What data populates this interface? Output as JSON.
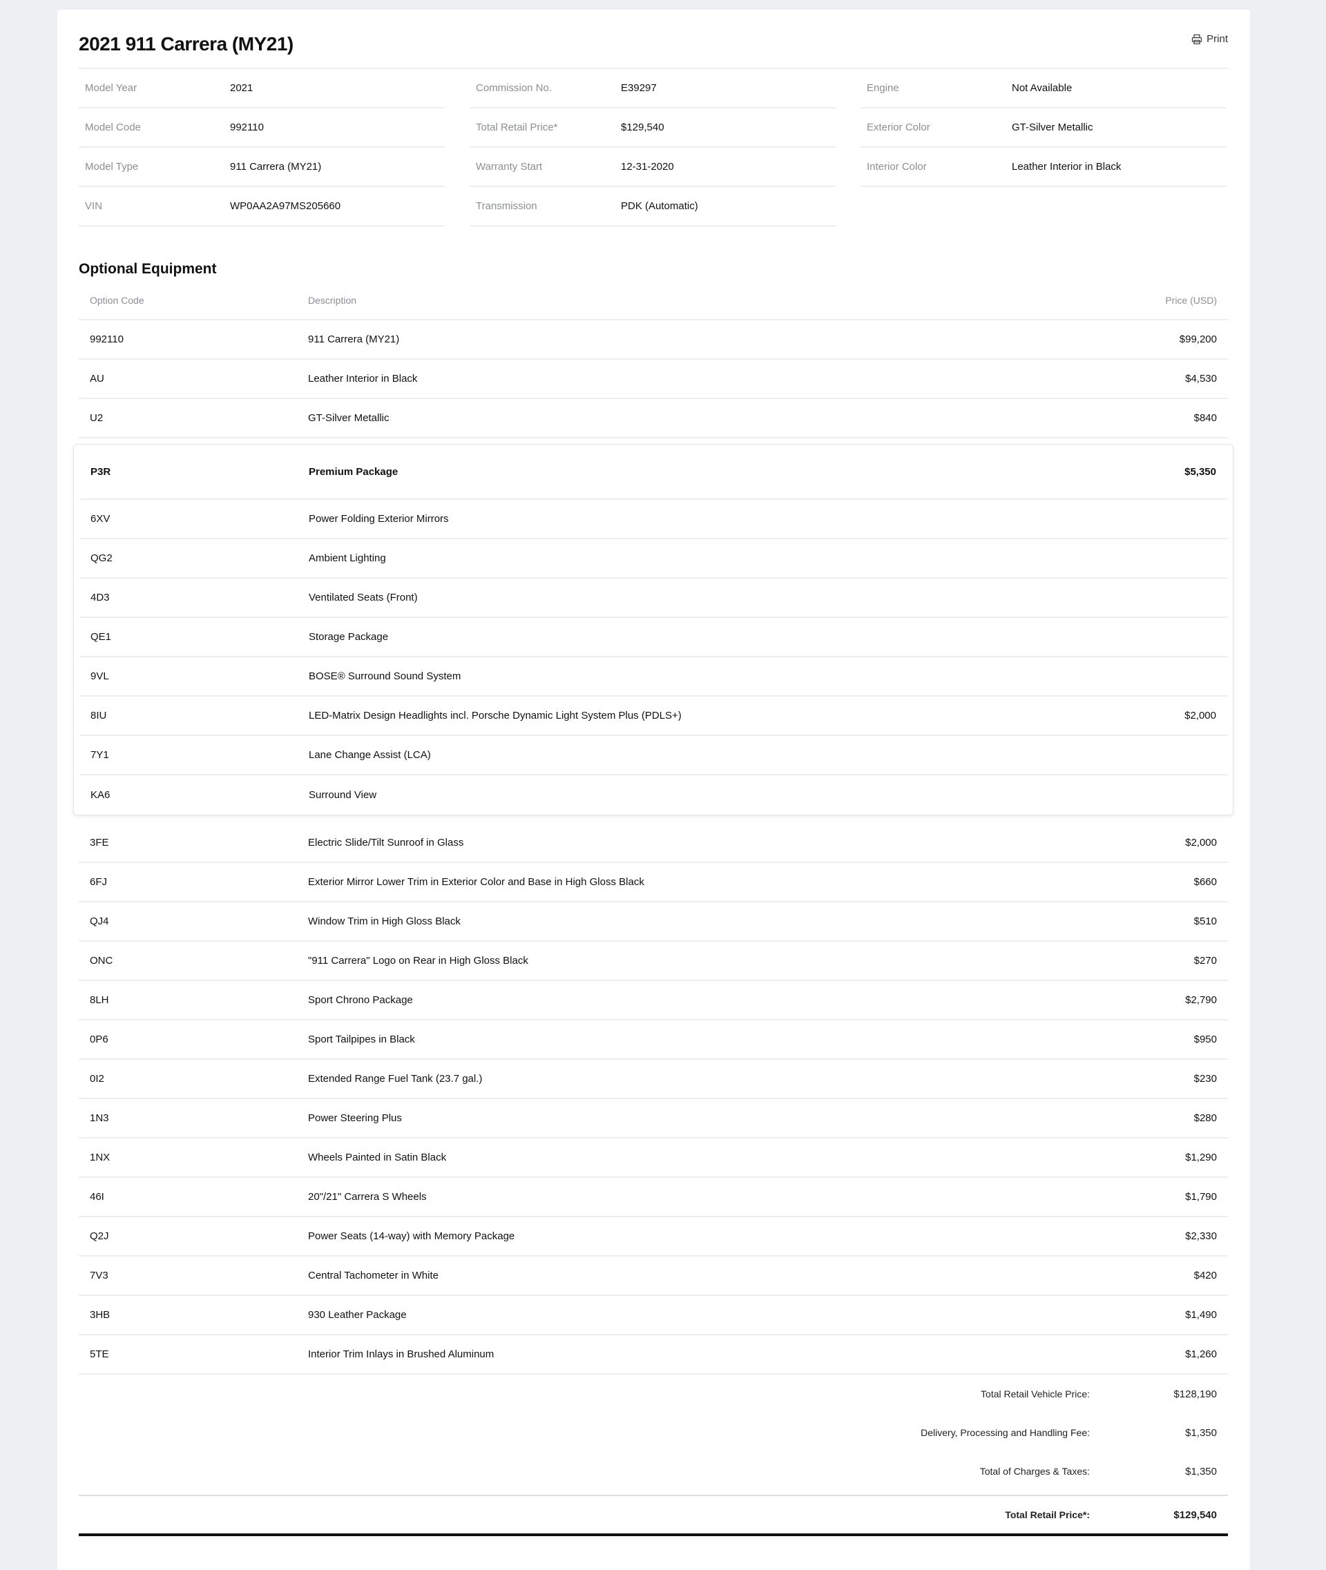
{
  "title": "2021 911 Carrera (MY21)",
  "print_label": "Print",
  "details": [
    [
      {
        "label": "Model Year",
        "value": "2021"
      },
      {
        "label": "Model Code",
        "value": "992110"
      },
      {
        "label": "Model Type",
        "value": "911 Carrera (MY21)"
      },
      {
        "label": "VIN",
        "value": "WP0AA2A97MS205660"
      }
    ],
    [
      {
        "label": "Commission No.",
        "value": "E39297"
      },
      {
        "label": "Total Retail Price*",
        "value": "$129,540"
      },
      {
        "label": "Warranty Start",
        "value": "12-31-2020"
      },
      {
        "label": "Transmission",
        "value": "PDK (Automatic)"
      }
    ],
    [
      {
        "label": "Engine",
        "value": "Not Available"
      },
      {
        "label": "Exterior Color",
        "value": "GT-Silver Metallic"
      },
      {
        "label": "Interior Color",
        "value": "Leather Interior in Black"
      }
    ]
  ],
  "optional_equipment": {
    "heading": "Optional Equipment",
    "columns": [
      "Option Code",
      "Description",
      "Price (USD)"
    ],
    "rows_before": [
      {
        "code": "992110",
        "desc": "911 Carrera (MY21)",
        "price": "$99,200"
      },
      {
        "code": "AU",
        "desc": "Leather Interior in Black",
        "price": "$4,530"
      },
      {
        "code": "U2",
        "desc": "GT-Silver Metallic",
        "price": "$840"
      }
    ],
    "package": {
      "code": "P3R",
      "desc": "Premium Package",
      "price": "$5,350",
      "items": [
        {
          "code": "6XV",
          "desc": "Power Folding Exterior Mirrors",
          "price": ""
        },
        {
          "code": "QG2",
          "desc": "Ambient Lighting",
          "price": ""
        },
        {
          "code": "4D3",
          "desc": "Ventilated Seats (Front)",
          "price": ""
        },
        {
          "code": "QE1",
          "desc": "Storage Package",
          "price": ""
        },
        {
          "code": "9VL",
          "desc": "BOSE® Surround Sound System",
          "price": ""
        },
        {
          "code": "8IU",
          "desc": "LED-Matrix Design Headlights incl. Porsche Dynamic Light System Plus (PDLS+)",
          "price": "$2,000"
        },
        {
          "code": "7Y1",
          "desc": "Lane Change Assist (LCA)",
          "price": ""
        },
        {
          "code": "KA6",
          "desc": "Surround View",
          "price": ""
        }
      ]
    },
    "rows_after": [
      {
        "code": "3FE",
        "desc": "Electric Slide/Tilt Sunroof in Glass",
        "price": "$2,000"
      },
      {
        "code": "6FJ",
        "desc": "Exterior Mirror Lower Trim in Exterior Color and Base in High Gloss Black",
        "price": "$660"
      },
      {
        "code": "QJ4",
        "desc": "Window Trim in High Gloss Black",
        "price": "$510"
      },
      {
        "code": "ONC",
        "desc": "\"911 Carrera\" Logo on Rear in High Gloss Black",
        "price": "$270"
      },
      {
        "code": "8LH",
        "desc": "Sport Chrono Package",
        "price": "$2,790"
      },
      {
        "code": "0P6",
        "desc": "Sport Tailpipes in Black",
        "price": "$950"
      },
      {
        "code": "0I2",
        "desc": "Extended Range Fuel Tank (23.7 gal.)",
        "price": "$230"
      },
      {
        "code": "1N3",
        "desc": "Power Steering Plus",
        "price": "$280"
      },
      {
        "code": "1NX",
        "desc": "Wheels Painted in Satin Black",
        "price": "$1,290"
      },
      {
        "code": "46I",
        "desc": "20\"/21\" Carrera S Wheels",
        "price": "$1,790"
      },
      {
        "code": "Q2J",
        "desc": "Power Seats (14-way) with Memory Package",
        "price": "$2,330"
      },
      {
        "code": "7V3",
        "desc": "Central Tachometer in White",
        "price": "$420"
      },
      {
        "code": "3HB",
        "desc": "930 Leather Package",
        "price": "$1,490"
      },
      {
        "code": "5TE",
        "desc": "Interior Trim Inlays in Brushed Aluminum",
        "price": "$1,260"
      }
    ],
    "totals": [
      {
        "label": "Total Retail Vehicle Price:",
        "value": "$128,190"
      },
      {
        "label": "Delivery, Processing and Handling Fee:",
        "value": "$1,350"
      },
      {
        "label": "Total of Charges & Taxes:",
        "value": "$1,350"
      }
    ],
    "final": {
      "label": "Total Retail Price*:",
      "value": "$129,540"
    }
  }
}
